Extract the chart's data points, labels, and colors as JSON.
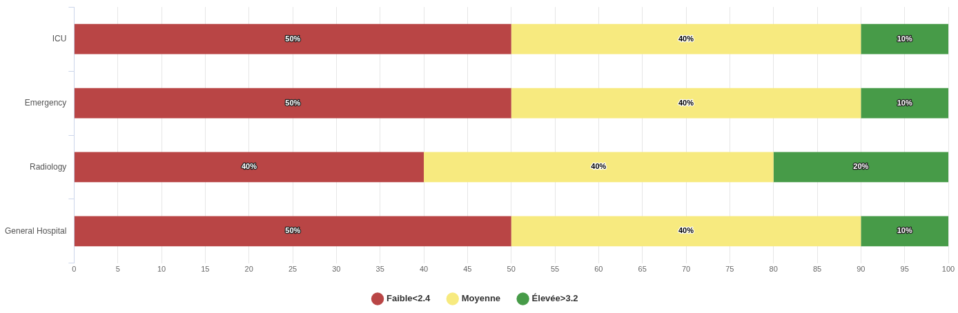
{
  "chart_data": {
    "type": "bar",
    "orientation": "horizontal",
    "stacked": true,
    "categories": [
      "ICU",
      "Emergency",
      "Radiology",
      "General Hospital"
    ],
    "series": [
      {
        "name": "Faible<2.4",
        "color": "#b94545",
        "values": [
          50,
          50,
          40,
          50
        ],
        "value_labels": [
          "50%",
          "50%",
          "40%",
          "50%"
        ]
      },
      {
        "name": "Moyenne",
        "color": "#f7ea7f",
        "values": [
          40,
          40,
          40,
          40
        ],
        "value_labels": [
          "40%",
          "40%",
          "40%",
          "40%"
        ]
      },
      {
        "name": "Élevée>3.2",
        "color": "#479b48",
        "values": [
          10,
          10,
          20,
          10
        ],
        "value_labels": [
          "10%",
          "10%",
          "20%",
          "10%"
        ]
      }
    ],
    "xlim": [
      0,
      100
    ],
    "xticks": [
      0,
      5,
      10,
      15,
      20,
      25,
      30,
      35,
      40,
      45,
      50,
      55,
      60,
      65,
      70,
      75,
      80,
      85,
      90,
      95,
      100
    ],
    "grid": "x",
    "legend": "bottom"
  }
}
